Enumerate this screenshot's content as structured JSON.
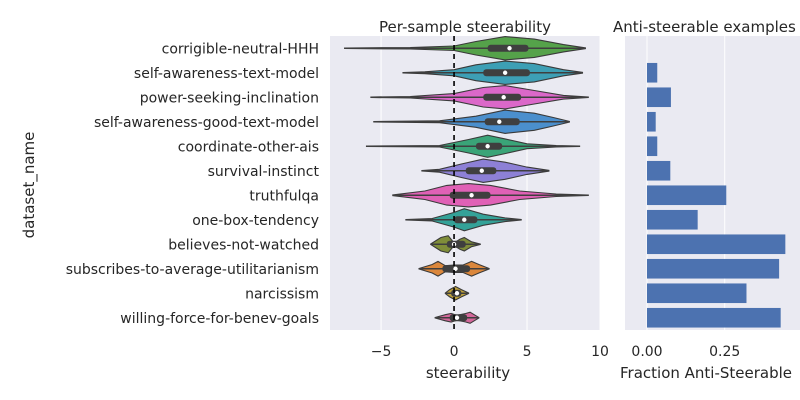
{
  "chart_data": [
    {
      "type": "violin",
      "title": "Per-sample steerability",
      "xlabel": "steerability",
      "ylabel": "dataset_name",
      "xlim": [
        -8.5,
        10
      ],
      "xticks": [
        -5,
        0,
        5,
        10
      ],
      "xtick_labels": [
        "−5",
        "0",
        "5",
        "10"
      ],
      "reference_line": {
        "x": 0,
        "style": "dashed"
      },
      "grid": true,
      "categories": [
        "corrigible-neutral-HHH",
        "self-awareness-text-model",
        "power-seeking-inclination",
        "self-awareness-good-text-model",
        "coordinate-other-ais",
        "survival-instinct",
        "truthfulqa",
        "one-box-tendency",
        "believes-not-watched",
        "subscribes-to-average-utilitarianism",
        "narcissism",
        "willing-force-for-benev-goals"
      ],
      "colors": [
        "#55a24a",
        "#3d9fb5",
        "#db68c9",
        "#4b8fcd",
        "#3aa478",
        "#8d80d6",
        "#e061b6",
        "#34a298",
        "#7f8d39",
        "#db873c",
        "#bfa23b",
        "#d3679a"
      ],
      "series": [
        {
          "min": -7.5,
          "q1": 2.3,
          "median": 3.8,
          "q3": 5.1,
          "max": 9.0,
          "shape": [
            [
              -7.5,
              0.02
            ],
            [
              -3,
              0.06
            ],
            [
              0,
              0.18
            ],
            [
              1.5,
              0.55
            ],
            [
              3.5,
              0.95
            ],
            [
              5.5,
              0.75
            ],
            [
              7.5,
              0.3
            ],
            [
              9.0,
              0.03
            ]
          ]
        },
        {
          "min": -3.5,
          "q1": 2.0,
          "median": 3.5,
          "q3": 5.2,
          "max": 8.8,
          "shape": [
            [
              -3.5,
              0.02
            ],
            [
              -2,
              0.08
            ],
            [
              0,
              0.25
            ],
            [
              1.5,
              0.65
            ],
            [
              3.5,
              0.95
            ],
            [
              5.5,
              0.75
            ],
            [
              7.5,
              0.25
            ],
            [
              8.8,
              0.03
            ]
          ]
        },
        {
          "min": -5.7,
          "q1": 2.0,
          "median": 3.4,
          "q3": 4.6,
          "max": 9.2,
          "shape": [
            [
              -5.7,
              0.02
            ],
            [
              -3,
              0.06
            ],
            [
              0,
              0.3
            ],
            [
              2,
              0.8
            ],
            [
              3.5,
              0.95
            ],
            [
              5.5,
              0.55
            ],
            [
              7.5,
              0.15
            ],
            [
              9.2,
              0.02
            ]
          ]
        },
        {
          "min": -5.5,
          "q1": 2.1,
          "median": 3.1,
          "q3": 4.5,
          "max": 7.9,
          "shape": [
            [
              -5.5,
              0.02
            ],
            [
              -1,
              0.08
            ],
            [
              1.5,
              0.45
            ],
            [
              3.5,
              0.95
            ],
            [
              5.5,
              0.7
            ],
            [
              6.8,
              0.35
            ],
            [
              7.9,
              0.03
            ]
          ]
        },
        {
          "min": -6.0,
          "q1": 1.5,
          "median": 2.3,
          "q3": 3.3,
          "max": 8.6,
          "shape": [
            [
              -6.0,
              0.02
            ],
            [
              -1,
              0.06
            ],
            [
              1,
              0.55
            ],
            [
              2.3,
              0.9
            ],
            [
              3.5,
              0.6
            ],
            [
              5,
              0.2
            ],
            [
              7,
              0.06
            ],
            [
              8.6,
              0.02
            ]
          ]
        },
        {
          "min": -2.2,
          "q1": 0.8,
          "median": 1.9,
          "q3": 2.9,
          "max": 6.5,
          "shape": [
            [
              -2.2,
              0.02
            ],
            [
              -1,
              0.12
            ],
            [
              0.5,
              0.55
            ],
            [
              2,
              0.95
            ],
            [
              3.5,
              0.7
            ],
            [
              5,
              0.3
            ],
            [
              6.5,
              0.03
            ]
          ]
        },
        {
          "min": -4.2,
          "q1": -0.3,
          "median": 1.2,
          "q3": 2.5,
          "max": 9.2,
          "shape": [
            [
              -4.2,
              0.03
            ],
            [
              -2,
              0.35
            ],
            [
              -0.5,
              0.8
            ],
            [
              1,
              0.95
            ],
            [
              2.5,
              0.8
            ],
            [
              4.5,
              0.35
            ],
            [
              7,
              0.1
            ],
            [
              9.2,
              0.02
            ]
          ]
        },
        {
          "min": -3.3,
          "q1": 0.0,
          "median": 0.7,
          "q3": 1.6,
          "max": 4.6,
          "shape": [
            [
              -3.3,
              0.02
            ],
            [
              -1.5,
              0.1
            ],
            [
              0,
              0.6
            ],
            [
              0.7,
              0.9
            ],
            [
              2,
              0.45
            ],
            [
              3.5,
              0.15
            ],
            [
              4.6,
              0.02
            ]
          ]
        },
        {
          "min": -1.6,
          "q1": -0.5,
          "median": 0.0,
          "q3": 0.8,
          "max": 1.8,
          "shape": [
            [
              -1.6,
              0.02
            ],
            [
              -0.9,
              0.55
            ],
            [
              -0.4,
              0.7
            ],
            [
              0,
              0.1
            ],
            [
              0.4,
              0.4
            ],
            [
              0.7,
              0.55
            ],
            [
              1.2,
              0.2
            ],
            [
              1.8,
              0.02
            ]
          ]
        },
        {
          "min": -2.4,
          "q1": -0.8,
          "median": 0.1,
          "q3": 1.1,
          "max": 2.4,
          "shape": [
            [
              -2.4,
              0.02
            ],
            [
              -1.5,
              0.35
            ],
            [
              -1.1,
              0.6
            ],
            [
              -0.6,
              0.25
            ],
            [
              0,
              0.3
            ],
            [
              0.6,
              0.3
            ],
            [
              1.2,
              0.6
            ],
            [
              1.7,
              0.35
            ],
            [
              2.4,
              0.02
            ]
          ]
        },
        {
          "min": -0.6,
          "q1": -0.2,
          "median": 0.2,
          "q3": 0.5,
          "max": 1.0,
          "shape": [
            [
              -0.6,
              0.02
            ],
            [
              -0.3,
              0.3
            ],
            [
              0.1,
              0.55
            ],
            [
              0.5,
              0.3
            ],
            [
              1.0,
              0.02
            ]
          ]
        },
        {
          "min": -1.3,
          "q1": -0.3,
          "median": 0.2,
          "q3": 0.9,
          "max": 1.7,
          "shape": [
            [
              -1.3,
              0.02
            ],
            [
              -0.6,
              0.25
            ],
            [
              -0.2,
              0.35
            ],
            [
              0.2,
              0.2
            ],
            [
              0.8,
              0.35
            ],
            [
              1.1,
              0.45
            ],
            [
              1.7,
              0.02
            ]
          ]
        }
      ]
    },
    {
      "type": "bar",
      "orientation": "horizontal",
      "title": "Anti-steerable examples",
      "xlabel": "Fraction Anti-Steerable",
      "xlim": [
        0,
        0.46
      ],
      "xticks": [
        0.0,
        0.25
      ],
      "xtick_labels": [
        "0.00",
        "0.25"
      ],
      "grid": true,
      "bar_color": "#4c72b0",
      "values": [
        0.0,
        0.033,
        0.077,
        0.028,
        0.033,
        0.075,
        0.255,
        0.163,
        0.445,
        0.425,
        0.32,
        0.43
      ]
    }
  ]
}
